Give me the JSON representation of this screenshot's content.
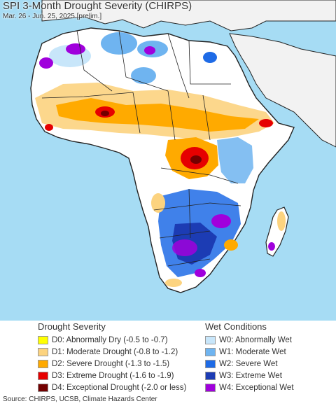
{
  "header": {
    "title": "SPI 3-Month Drought Severity (CHIRPS)",
    "subtitle": "Mar. 26 - Jun. 25, 2025 [prelim.]"
  },
  "colors": {
    "ocean": "#a6dcf4",
    "land_base": "#ffffff",
    "neighbor_land": "#f2f2f2",
    "border": "#222222"
  },
  "legend": {
    "drought": {
      "heading": "Drought Severity",
      "items": [
        {
          "label": "D0: Abnormally Dry (-0.5 to -0.7)",
          "color": "#ffff00"
        },
        {
          "label": "D1: Moderate Drought (-0.8 to -1.2)",
          "color": "#fcd37f"
        },
        {
          "label": "D2: Severe Drought (-1.3 to -1.5)",
          "color": "#ffaa00"
        },
        {
          "label": "D3: Extreme Drought (-1.6 to -1.9)",
          "color": "#e60000"
        },
        {
          "label": "D4: Exceptional Drought (-2.0 or less)",
          "color": "#730000"
        }
      ]
    },
    "wet": {
      "heading": "Wet Conditions",
      "items": [
        {
          "label": "W0: Abnormally Wet",
          "color": "#c8e6fa"
        },
        {
          "label": "W1: Moderate Wet",
          "color": "#6fb4f0"
        },
        {
          "label": "W2: Severe Wet",
          "color": "#1e6be6"
        },
        {
          "label": "W3: Extreme Wet",
          "color": "#1c3cb4"
        },
        {
          "label": "W4: Exceptional Wet",
          "color": "#a000dc"
        }
      ]
    }
  },
  "footer": {
    "source": "Source: CHIRPS, UCSB, Climate Hazards Center"
  }
}
